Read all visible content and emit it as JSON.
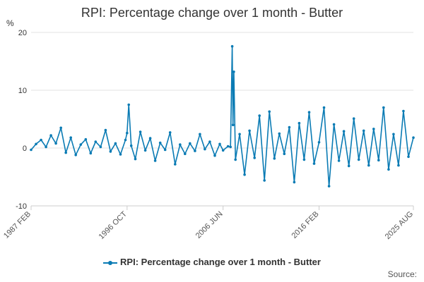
{
  "chart_data": {
    "type": "line",
    "title": "RPI: Percentage change over 1 month - Butter",
    "unit": "%",
    "xlabel": "",
    "ylabel": "",
    "ylim": [
      -10,
      20
    ],
    "yticks": [
      20,
      10,
      0,
      -10
    ],
    "xrange": [
      "1987 FEB",
      "2025 AUG"
    ],
    "xticks": [
      "1987 FEB",
      "1996 OCT",
      "2006 JUN",
      "2016 FEB",
      "2025 AUG"
    ],
    "grid": true,
    "legend_position": "bottom",
    "line_color": "#0a7bb4",
    "series": [
      {
        "name": "RPI: Percentage change over 1 month - Butter",
        "points": [
          [
            "1987 FEB",
            -0.3
          ],
          [
            "1987 AUG",
            0.7
          ],
          [
            "1988 FEB",
            1.4
          ],
          [
            "1988 AUG",
            0.2
          ],
          [
            "1989 FEB",
            2.2
          ],
          [
            "1989 AUG",
            0.8
          ],
          [
            "1990 FEB",
            3.5
          ],
          [
            "1990 AUG",
            -0.8
          ],
          [
            "1991 FEB",
            1.8
          ],
          [
            "1991 AUG",
            -1.2
          ],
          [
            "1992 FEB",
            0.6
          ],
          [
            "1992 AUG",
            1.5
          ],
          [
            "1993 FEB",
            -0.9
          ],
          [
            "1993 AUG",
            1.1
          ],
          [
            "1994 FEB",
            0.2
          ],
          [
            "1994 AUG",
            3.1
          ],
          [
            "1995 FEB",
            -0.6
          ],
          [
            "1995 AUG",
            0.8
          ],
          [
            "1996 FEB",
            -1.1
          ],
          [
            "1996 AUG",
            1.4
          ],
          [
            "1996 OCT",
            2.6
          ],
          [
            "1996 DEC",
            7.5
          ],
          [
            "1997 MAR",
            0.4
          ],
          [
            "1997 AUG",
            -1.9
          ],
          [
            "1998 FEB",
            2.8
          ],
          [
            "1998 AUG",
            -0.4
          ],
          [
            "1999 FEB",
            1.7
          ],
          [
            "1999 AUG",
            -2.2
          ],
          [
            "2000 FEB",
            0.9
          ],
          [
            "2000 AUG",
            -0.3
          ],
          [
            "2001 FEB",
            2.7
          ],
          [
            "2001 AUG",
            -2.8
          ],
          [
            "2002 FEB",
            0.6
          ],
          [
            "2002 AUG",
            -1.0
          ],
          [
            "2003 FEB",
            0.8
          ],
          [
            "2003 AUG",
            -0.5
          ],
          [
            "2004 FEB",
            2.4
          ],
          [
            "2004 AUG",
            -0.2
          ],
          [
            "2005 FEB",
            1.1
          ],
          [
            "2005 AUG",
            -1.3
          ],
          [
            "2006 FEB",
            0.7
          ],
          [
            "2006 JUN",
            -0.4
          ],
          [
            "2006 DEC",
            0.3
          ],
          [
            "2007 MAR",
            0.2
          ],
          [
            "2007 MAY",
            17.6
          ],
          [
            "2007 JUN",
            4.0
          ],
          [
            "2007 JUL",
            13.2
          ],
          [
            "2007 SEP",
            -2.0
          ],
          [
            "2008 FEB",
            2.4
          ],
          [
            "2008 AUG",
            -4.6
          ],
          [
            "2009 FEB",
            3.0
          ],
          [
            "2009 AUG",
            -1.7
          ],
          [
            "2010 FEB",
            5.6
          ],
          [
            "2010 AUG",
            -5.6
          ],
          [
            "2011 FEB",
            6.3
          ],
          [
            "2011 AUG",
            -1.8
          ],
          [
            "2012 FEB",
            2.5
          ],
          [
            "2012 AUG",
            -1.0
          ],
          [
            "2013 FEB",
            3.6
          ],
          [
            "2013 AUG",
            -5.9
          ],
          [
            "2014 FEB",
            4.3
          ],
          [
            "2014 AUG",
            -2.0
          ],
          [
            "2015 FEB",
            6.2
          ],
          [
            "2015 AUG",
            -2.7
          ],
          [
            "2016 FEB",
            1.0
          ],
          [
            "2016 AUG",
            7.0
          ],
          [
            "2017 FEB",
            -6.6
          ],
          [
            "2017 AUG",
            4.1
          ],
          [
            "2018 FEB",
            -2.2
          ],
          [
            "2018 AUG",
            2.9
          ],
          [
            "2019 FEB",
            -3.1
          ],
          [
            "2019 AUG",
            5.1
          ],
          [
            "2020 FEB",
            -2.0
          ],
          [
            "2020 AUG",
            3.0
          ],
          [
            "2021 FEB",
            -3.0
          ],
          [
            "2021 AUG",
            3.3
          ],
          [
            "2022 FEB",
            -2.1
          ],
          [
            "2022 AUG",
            7.0
          ],
          [
            "2023 FEB",
            -3.7
          ],
          [
            "2023 AUG",
            2.4
          ],
          [
            "2024 FEB",
            -3.0
          ],
          [
            "2024 AUG",
            6.4
          ],
          [
            "2025 FEB",
            -1.5
          ],
          [
            "2025 AUG",
            1.8
          ]
        ]
      }
    ]
  },
  "footer": {
    "source_label": "Source:"
  }
}
